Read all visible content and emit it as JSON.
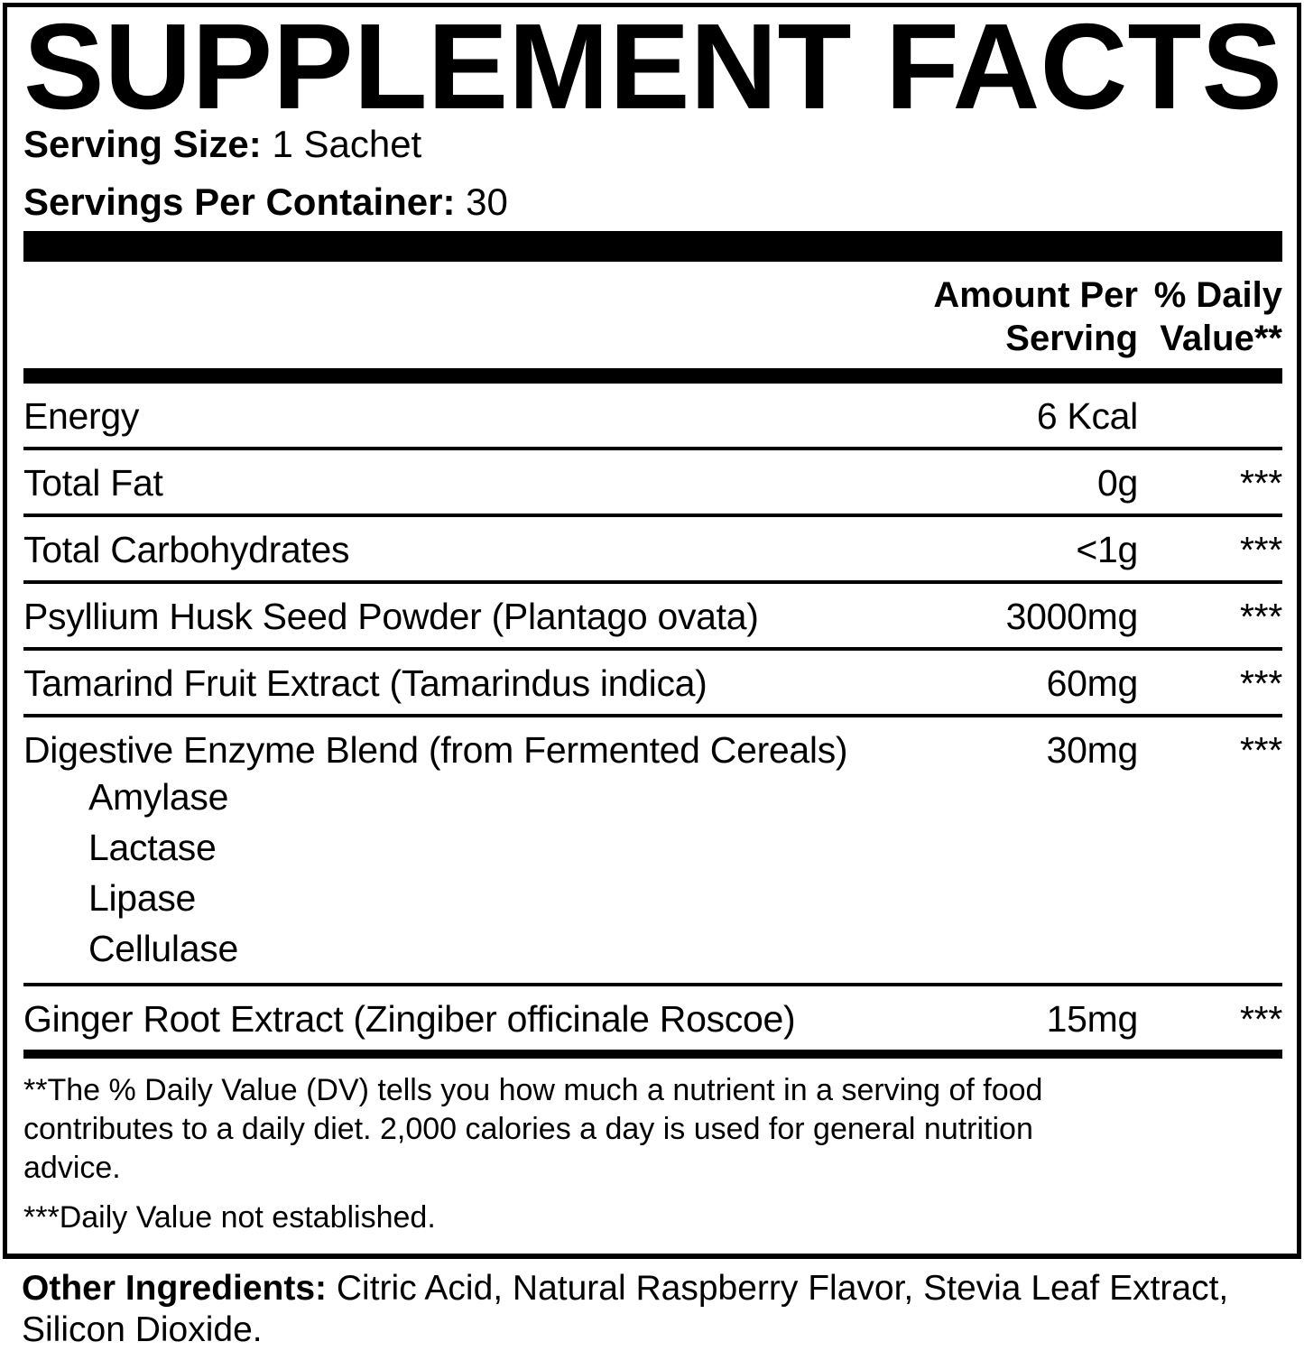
{
  "title": "SUPPLEMENT FACTS",
  "serving_info": {
    "serving_size_label": "Serving Size:",
    "serving_size_value": "1 Sachet",
    "servings_per_container_label": "Servings Per Container:",
    "servings_per_container_value": "30"
  },
  "table": {
    "header": {
      "amount_per_serving": "Amount Per Serving",
      "daily_value": "% Daily Value**"
    },
    "rows": [
      {
        "label": "Energy",
        "amount": "6 Kcal",
        "dv": ""
      },
      {
        "label": "Total Fat",
        "amount": "0g",
        "dv": "***"
      },
      {
        "label": "Total Carbohydrates",
        "amount": "<1g",
        "dv": "***"
      },
      {
        "label": "Psyllium Husk Seed Powder (Plantago ovata)",
        "amount": "3000mg",
        "dv": "***"
      },
      {
        "label": "Tamarind Fruit Extract (Tamarindus indica)",
        "amount": "60mg",
        "dv": "***"
      },
      {
        "label": "Digestive Enzyme Blend (from Fermented Cereals)",
        "amount": "30mg",
        "dv": "***",
        "sub_items": [
          "Amylase",
          "Lactase",
          "Lipase",
          "Cellulase"
        ]
      },
      {
        "label": "Ginger Root Extract (Zingiber officinale Roscoe)",
        "amount": "15mg",
        "dv": "***"
      }
    ]
  },
  "footnotes": {
    "daily_value_note": "**The % Daily Value (DV) tells you how much a nutrient in a serving of food contributes to a daily diet. 2,000 calories a day is used for general nutrition advice.",
    "not_established_note": "***Daily Value not established."
  },
  "other_ingredients": {
    "label": "Other Ingredients:",
    "value": "Citric Acid, Natural Raspberry Flavor, Stevia Leaf Extract, Silicon Dioxide."
  },
  "colors": {
    "text": "#000000",
    "background": "#ffffff"
  }
}
